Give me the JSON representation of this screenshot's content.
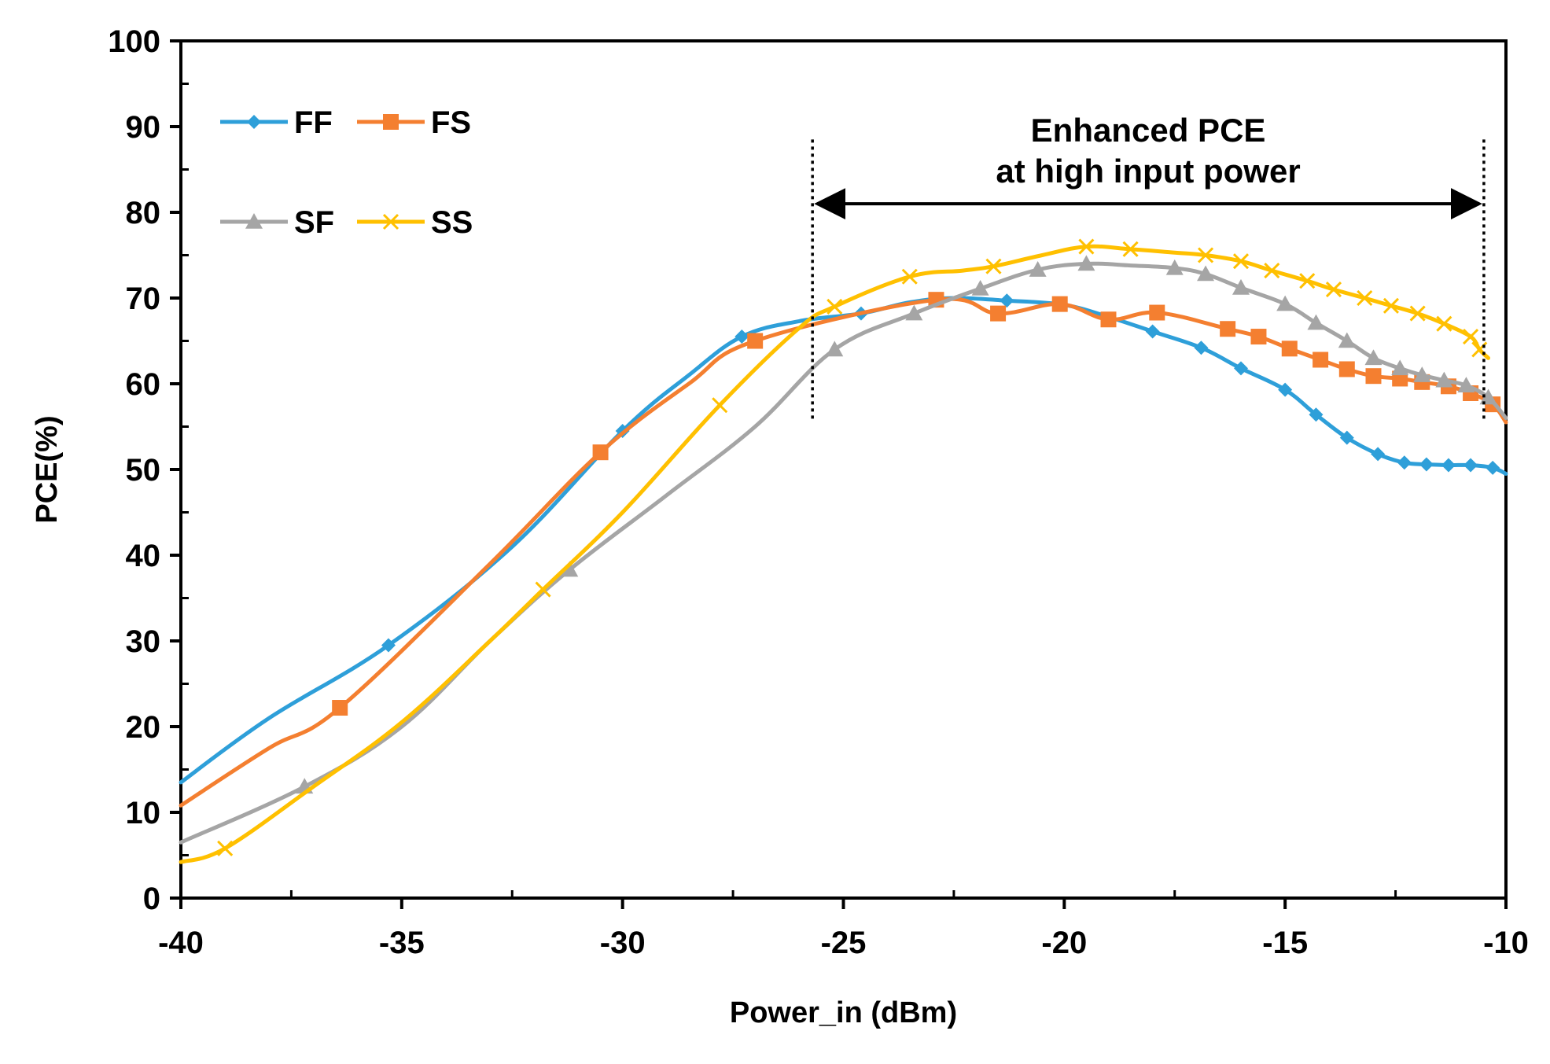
{
  "chart_data": {
    "type": "line",
    "title": "",
    "xlabel": "Power_in (dBm)",
    "ylabel": "PCE(%)",
    "xlim": [
      -40,
      -10
    ],
    "ylim": [
      0,
      100
    ],
    "x_ticks": [
      -40,
      -35,
      -30,
      -25,
      -20,
      -15,
      -10
    ],
    "y_ticks": [
      0,
      10,
      20,
      30,
      40,
      50,
      60,
      70,
      80,
      90,
      100
    ],
    "x_tick_labels": [
      "-40",
      "-35",
      "-30",
      "-25",
      "-20",
      "-15",
      "-10"
    ],
    "y_tick_labels": [
      "0",
      "10",
      "20",
      "30",
      "40",
      "50",
      "60",
      "70",
      "80",
      "90",
      "100"
    ],
    "grid": false,
    "legend_position": "top-left",
    "series": [
      {
        "name": "FF",
        "color": "#2E9FD9",
        "marker": "diamond",
        "points": [
          [
            -40,
            13.5
          ],
          [
            -38,
            21
          ],
          [
            -35.3,
            29.5
          ],
          [
            -32.5,
            41
          ],
          [
            -30,
            54.5
          ],
          [
            -28.5,
            61
          ],
          [
            -27.3,
            65.5
          ],
          [
            -26,
            67.3
          ],
          [
            -24.6,
            68.2
          ],
          [
            -23.5,
            69.5
          ],
          [
            -22.5,
            70
          ],
          [
            -21.3,
            69.7
          ],
          [
            -20,
            69.2
          ],
          [
            -19,
            67.8
          ],
          [
            -18,
            66.1
          ],
          [
            -16.9,
            64.2
          ],
          [
            -16,
            61.8
          ],
          [
            -15,
            59.3
          ],
          [
            -14.3,
            56.4
          ],
          [
            -13.6,
            53.7
          ],
          [
            -12.9,
            51.8
          ],
          [
            -12.3,
            50.8
          ],
          [
            -11.8,
            50.6
          ],
          [
            -11.3,
            50.5
          ],
          [
            -10.8,
            50.5
          ],
          [
            -10.3,
            50.2
          ],
          [
            -10,
            49.5
          ]
        ],
        "markers_x": [
          -35.3,
          -30,
          -27.3,
          -24.6,
          -21.3,
          -18,
          -16.9,
          -16,
          -15,
          -14.3,
          -13.6,
          -12.9,
          -12.3,
          -11.8,
          -11.3,
          -10.8,
          -10.3
        ]
      },
      {
        "name": "FS",
        "color": "#F47F30",
        "marker": "square",
        "points": [
          [
            -40,
            10.8
          ],
          [
            -38,
            17.5
          ],
          [
            -36.4,
            22.2
          ],
          [
            -33,
            39
          ],
          [
            -30.5,
            52
          ],
          [
            -28.5,
            60
          ],
          [
            -27,
            65
          ],
          [
            -22.9,
            69.8
          ],
          [
            -21.5,
            68.2
          ],
          [
            -20.1,
            69.3
          ],
          [
            -19,
            67.5
          ],
          [
            -17.9,
            68.3
          ],
          [
            -16.3,
            66.4
          ],
          [
            -15.6,
            65.5
          ],
          [
            -14.9,
            64.1
          ],
          [
            -14.2,
            62.8
          ],
          [
            -13.6,
            61.7
          ],
          [
            -13,
            60.9
          ],
          [
            -12.4,
            60.6
          ],
          [
            -11.9,
            60.2
          ],
          [
            -11.3,
            59.7
          ],
          [
            -10.8,
            58.9
          ],
          [
            -10.3,
            57.6
          ],
          [
            -10,
            55.5
          ]
        ],
        "markers_x": [
          -36.4,
          -30.5,
          -27,
          -22.9,
          -21.5,
          -20.1,
          -19,
          -17.9,
          -16.3,
          -15.6,
          -14.9,
          -14.2,
          -13.6,
          -13,
          -12.4,
          -11.9,
          -11.3,
          -10.8,
          -10.3
        ]
      },
      {
        "name": "SF",
        "color": "#A5A5A5",
        "marker": "triangle",
        "points": [
          [
            -40,
            6.5
          ],
          [
            -37.2,
            13
          ],
          [
            -35,
            20
          ],
          [
            -33,
            30
          ],
          [
            -31.2,
            38.3
          ],
          [
            -29,
            47
          ],
          [
            -27,
            55
          ],
          [
            -25.2,
            64
          ],
          [
            -23.4,
            68.2
          ],
          [
            -21.9,
            71.1
          ],
          [
            -20.6,
            73.3
          ],
          [
            -19.5,
            74
          ],
          [
            -18.5,
            73.8
          ],
          [
            -17.5,
            73.5
          ],
          [
            -16.8,
            72.8
          ],
          [
            -16,
            71.2
          ],
          [
            -15,
            69.3
          ],
          [
            -14.3,
            67.1
          ],
          [
            -13.6,
            65
          ],
          [
            -13,
            63
          ],
          [
            -12.4,
            61.8
          ],
          [
            -11.9,
            61
          ],
          [
            -11.4,
            60.4
          ],
          [
            -10.9,
            59.8
          ],
          [
            -10.4,
            58.4
          ],
          [
            -10,
            56
          ]
        ],
        "markers_x": [
          -37.2,
          -31.2,
          -25.2,
          -23.4,
          -21.9,
          -20.6,
          -19.5,
          -17.5,
          -16.8,
          -16,
          -15,
          -14.3,
          -13.6,
          -13,
          -12.4,
          -11.9,
          -11.4,
          -10.9,
          -10.4
        ]
      },
      {
        "name": "SS",
        "color": "#FFC000",
        "marker": "x",
        "points": [
          [
            -40,
            4.2
          ],
          [
            -39,
            5.8
          ],
          [
            -37,
            13
          ],
          [
            -35,
            20.5
          ],
          [
            -33,
            30
          ],
          [
            -31.8,
            36
          ],
          [
            -30,
            45
          ],
          [
            -27.8,
            57.5
          ],
          [
            -26,
            66.5
          ],
          [
            -25.2,
            69
          ],
          [
            -23.5,
            72.5
          ],
          [
            -22.3,
            73.2
          ],
          [
            -21.6,
            73.7
          ],
          [
            -20.5,
            75
          ],
          [
            -19.5,
            76
          ],
          [
            -18.5,
            75.7
          ],
          [
            -17.5,
            75.3
          ],
          [
            -16.8,
            75
          ],
          [
            -16,
            74.3
          ],
          [
            -15.3,
            73.2
          ],
          [
            -14.5,
            72
          ],
          [
            -13.9,
            71
          ],
          [
            -13.2,
            70
          ],
          [
            -12.6,
            69.1
          ],
          [
            -12,
            68.2
          ],
          [
            -11.4,
            67
          ],
          [
            -10.8,
            65.5
          ],
          [
            -10.6,
            64
          ],
          [
            -10.4,
            63
          ]
        ],
        "markers_x": [
          -39,
          -31.8,
          -27.8,
          -25.2,
          -23.5,
          -21.6,
          -19.5,
          -18.5,
          -16.8,
          -16,
          -15.3,
          -14.5,
          -13.9,
          -13.2,
          -12.6,
          -12,
          -11.4,
          -10.8,
          -10.6
        ]
      }
    ],
    "annotation": {
      "lines": [
        "Enhanced PCE",
        "at high input power"
      ],
      "x_start": -25.7,
      "x_end": -10.5,
      "y_arrow": 81,
      "y_dotted_low": 55.5,
      "y_dotted_high": 88.5
    }
  }
}
